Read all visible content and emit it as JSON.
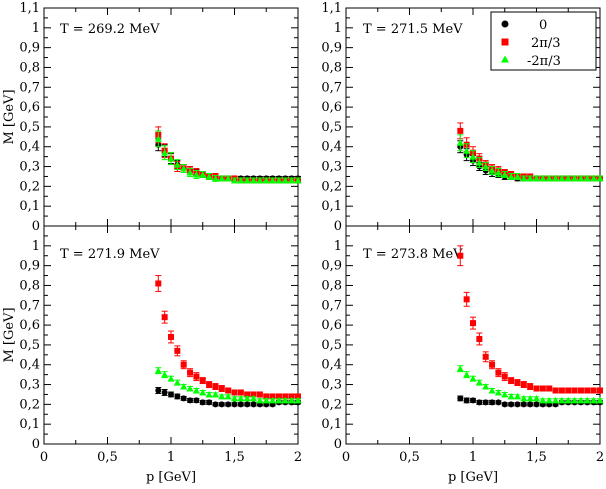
{
  "chart_data": {
    "type": "scatter",
    "layout": "2x2 panels, shared axes",
    "xlabel": "p [GeV]",
    "ylabel": "M [GeV]",
    "xlim": [
      0,
      2
    ],
    "ylim": [
      0,
      1.1
    ],
    "x_ticks": [
      0,
      0.5,
      1,
      1.5,
      2
    ],
    "x_tick_labels": [
      "0",
      "0,5",
      "1",
      "1,5",
      "2"
    ],
    "y_ticks": [
      0,
      0.1,
      0.2,
      0.3,
      0.4,
      0.5,
      0.6,
      0.7,
      0.8,
      0.9,
      1,
      1.1
    ],
    "y_tick_labels": [
      "0",
      "0,1",
      "0,2",
      "0,3",
      "0,4",
      "0,5",
      "0,6",
      "0,7",
      "0,8",
      "0,9",
      "1",
      "1,1"
    ],
    "legend": {
      "position": "top-right of top-right panel",
      "entries": [
        {
          "label": "0",
          "color": "#000000",
          "marker": "circle"
        },
        {
          "label": "2π/3",
          "color": "#ff0000",
          "marker": "square"
        },
        {
          "label": "-2π/3",
          "color": "#00ff00",
          "marker": "triangle"
        }
      ]
    },
    "x": [
      0.9,
      0.95,
      1.0,
      1.05,
      1.1,
      1.15,
      1.2,
      1.25,
      1.3,
      1.35,
      1.4,
      1.45,
      1.5,
      1.55,
      1.6,
      1.65,
      1.7,
      1.75,
      1.8,
      1.85,
      1.9,
      1.95,
      2.0
    ],
    "panels": [
      {
        "title": "T = 269.2 MeV",
        "series": [
          {
            "name": "0",
            "values": [
              0.41,
              0.38,
              0.34,
              0.31,
              0.29,
              0.28,
              0.27,
              0.26,
              0.25,
              0.25,
              0.24,
              0.24,
              0.24,
              0.24,
              0.24,
              0.24,
              0.24,
              0.24,
              0.24,
              0.24,
              0.24,
              0.24,
              0.24
            ],
            "errors": [
              0.03,
              0.03,
              0.025,
              0.02,
              0.02,
              0.02,
              0.015,
              0.015,
              0.015,
              0.012,
              0.012,
              0.012,
              0.01,
              0.01,
              0.01,
              0.01,
              0.01,
              0.01,
              0.01,
              0.01,
              0.01,
              0.01,
              0.01
            ]
          },
          {
            "name": "2π/3",
            "values": [
              0.46,
              0.38,
              0.34,
              0.3,
              0.29,
              0.28,
              0.27,
              0.26,
              0.25,
              0.25,
              0.24,
              0.24,
              0.24,
              0.23,
              0.23,
              0.23,
              0.23,
              0.23,
              0.23,
              0.23,
              0.23,
              0.23,
              0.23
            ],
            "errors": [
              0.04,
              0.035,
              0.03,
              0.025,
              0.02,
              0.02,
              0.02,
              0.015,
              0.015,
              0.015,
              0.012,
              0.012,
              0.012,
              0.012,
              0.012,
              0.012,
              0.012,
              0.012,
              0.012,
              0.012,
              0.012,
              0.012,
              0.012
            ]
          },
          {
            "name": "-2π/3",
            "values": [
              0.44,
              0.37,
              0.34,
              0.31,
              0.29,
              0.27,
              0.26,
              0.26,
              0.25,
              0.24,
              0.24,
              0.24,
              0.23,
              0.23,
              0.23,
              0.23,
              0.23,
              0.23,
              0.23,
              0.23,
              0.23,
              0.23,
              0.23
            ],
            "errors": [
              0.04,
              0.035,
              0.03,
              0.025,
              0.02,
              0.02,
              0.02,
              0.015,
              0.015,
              0.015,
              0.012,
              0.012,
              0.012,
              0.012,
              0.012,
              0.012,
              0.012,
              0.012,
              0.012,
              0.012,
              0.012,
              0.012,
              0.012
            ]
          }
        ]
      },
      {
        "title": "T = 271.5 MeV",
        "series": [
          {
            "name": "0",
            "values": [
              0.4,
              0.36,
              0.33,
              0.3,
              0.28,
              0.27,
              0.26,
              0.25,
              0.25,
              0.24,
              0.24,
              0.24,
              0.24,
              0.24,
              0.24,
              0.24,
              0.24,
              0.24,
              0.24,
              0.24,
              0.24,
              0.24,
              0.24
            ],
            "errors": [
              0.03,
              0.03,
              0.025,
              0.02,
              0.02,
              0.02,
              0.015,
              0.015,
              0.015,
              0.012,
              0.012,
              0.012,
              0.01,
              0.01,
              0.01,
              0.01,
              0.01,
              0.01,
              0.01,
              0.01,
              0.01,
              0.01,
              0.01
            ]
          },
          {
            "name": "2π/3",
            "values": [
              0.48,
              0.41,
              0.37,
              0.34,
              0.31,
              0.29,
              0.28,
              0.27,
              0.26,
              0.25,
              0.25,
              0.25,
              0.24,
              0.24,
              0.24,
              0.24,
              0.24,
              0.24,
              0.24,
              0.24,
              0.24,
              0.24,
              0.24
            ],
            "errors": [
              0.04,
              0.035,
              0.03,
              0.025,
              0.02,
              0.02,
              0.02,
              0.015,
              0.015,
              0.015,
              0.012,
              0.012,
              0.012,
              0.012,
              0.012,
              0.012,
              0.012,
              0.012,
              0.012,
              0.012,
              0.012,
              0.012,
              0.012
            ]
          },
          {
            "name": "-2π/3",
            "values": [
              0.42,
              0.38,
              0.35,
              0.32,
              0.3,
              0.28,
              0.27,
              0.26,
              0.25,
              0.25,
              0.24,
              0.24,
              0.24,
              0.24,
              0.24,
              0.24,
              0.24,
              0.24,
              0.24,
              0.24,
              0.24,
              0.24,
              0.24
            ],
            "errors": [
              0.04,
              0.035,
              0.03,
              0.025,
              0.02,
              0.02,
              0.02,
              0.015,
              0.015,
              0.015,
              0.012,
              0.012,
              0.012,
              0.012,
              0.012,
              0.012,
              0.012,
              0.012,
              0.012,
              0.012,
              0.012,
              0.012,
              0.012
            ]
          }
        ]
      },
      {
        "title": "T = 271.9 MeV",
        "series": [
          {
            "name": "0",
            "values": [
              0.27,
              0.26,
              0.25,
              0.24,
              0.23,
              0.22,
              0.22,
              0.21,
              0.21,
              0.2,
              0.2,
              0.2,
              0.2,
              0.2,
              0.2,
              0.2,
              0.2,
              0.2,
              0.2,
              0.21,
              0.21,
              0.21,
              0.21
            ],
            "errors": [
              0.015,
              0.015,
              0.012,
              0.012,
              0.01,
              0.01,
              0.01,
              0.01,
              0.01,
              0.008,
              0.008,
              0.008,
              0.008,
              0.008,
              0.008,
              0.008,
              0.008,
              0.008,
              0.008,
              0.008,
              0.008,
              0.008,
              0.008
            ]
          },
          {
            "name": "2π/3",
            "values": [
              0.81,
              0.64,
              0.54,
              0.47,
              0.4,
              0.36,
              0.34,
              0.32,
              0.3,
              0.29,
              0.28,
              0.27,
              0.26,
              0.26,
              0.25,
              0.25,
              0.25,
              0.24,
              0.24,
              0.24,
              0.24,
              0.24,
              0.24
            ],
            "errors": [
              0.04,
              0.03,
              0.03,
              0.025,
              0.02,
              0.02,
              0.02,
              0.015,
              0.015,
              0.015,
              0.015,
              0.012,
              0.012,
              0.012,
              0.012,
              0.012,
              0.012,
              0.012,
              0.012,
              0.012,
              0.012,
              0.012,
              0.012
            ]
          },
          {
            "name": "-2π/3",
            "values": [
              0.37,
              0.35,
              0.33,
              0.31,
              0.29,
              0.28,
              0.27,
              0.26,
              0.25,
              0.25,
              0.24,
              0.24,
              0.23,
              0.23,
              0.23,
              0.23,
              0.22,
              0.22,
              0.22,
              0.22,
              0.22,
              0.22,
              0.22
            ],
            "errors": [
              0.015,
              0.015,
              0.012,
              0.012,
              0.01,
              0.01,
              0.01,
              0.01,
              0.01,
              0.008,
              0.008,
              0.008,
              0.008,
              0.008,
              0.008,
              0.008,
              0.008,
              0.008,
              0.008,
              0.008,
              0.008,
              0.008,
              0.008
            ]
          }
        ]
      },
      {
        "title": "T = 273.8 MeV",
        "series": [
          {
            "name": "0",
            "values": [
              0.23,
              0.22,
              0.22,
              0.21,
              0.21,
              0.21,
              0.21,
              0.2,
              0.2,
              0.2,
              0.2,
              0.2,
              0.2,
              0.2,
              0.2,
              0.2,
              0.21,
              0.21,
              0.21,
              0.21,
              0.21,
              0.21,
              0.21
            ],
            "errors": [
              0.012,
              0.012,
              0.01,
              0.01,
              0.01,
              0.01,
              0.008,
              0.008,
              0.008,
              0.008,
              0.008,
              0.008,
              0.008,
              0.008,
              0.008,
              0.008,
              0.008,
              0.008,
              0.008,
              0.008,
              0.008,
              0.008,
              0.008
            ]
          },
          {
            "name": "2π/3",
            "values": [
              0.95,
              0.73,
              0.61,
              0.53,
              0.44,
              0.4,
              0.36,
              0.34,
              0.32,
              0.31,
              0.3,
              0.29,
              0.28,
              0.28,
              0.28,
              0.27,
              0.27,
              0.27,
              0.27,
              0.27,
              0.27,
              0.27,
              0.27
            ],
            "errors": [
              0.05,
              0.035,
              0.03,
              0.03,
              0.025,
              0.02,
              0.02,
              0.02,
              0.015,
              0.015,
              0.015,
              0.015,
              0.012,
              0.012,
              0.012,
              0.012,
              0.012,
              0.012,
              0.012,
              0.012,
              0.012,
              0.012,
              0.012
            ]
          },
          {
            "name": "-2π/3",
            "values": [
              0.38,
              0.35,
              0.33,
              0.31,
              0.29,
              0.27,
              0.26,
              0.25,
              0.24,
              0.24,
              0.23,
              0.23,
              0.23,
              0.22,
              0.22,
              0.22,
              0.22,
              0.22,
              0.22,
              0.22,
              0.22,
              0.22,
              0.22
            ],
            "errors": [
              0.015,
              0.015,
              0.012,
              0.012,
              0.01,
              0.01,
              0.01,
              0.01,
              0.01,
              0.008,
              0.008,
              0.008,
              0.008,
              0.008,
              0.008,
              0.008,
              0.008,
              0.008,
              0.008,
              0.008,
              0.008,
              0.008,
              0.008
            ]
          }
        ]
      }
    ]
  }
}
